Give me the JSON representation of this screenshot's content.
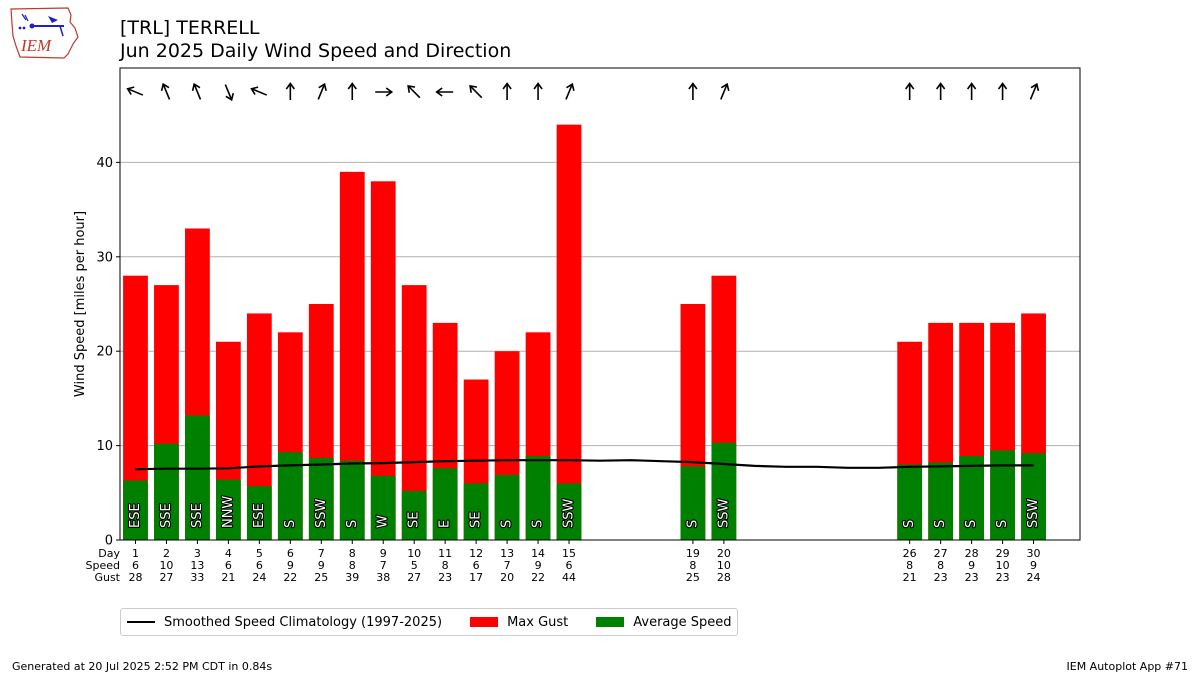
{
  "header": {
    "station": "[TRL] TERRELL",
    "subtitle": "Jun 2025 Daily Wind Speed and Direction",
    "logo_text": "IEM"
  },
  "row_labels": {
    "day": "Day",
    "speed": "Speed",
    "gust": "Gust"
  },
  "legend": {
    "climo": "Smoothed Speed Climatology (1997-2025)",
    "gust": "Max Gust",
    "avg": "Average Speed"
  },
  "footer": {
    "generated": "Generated at 20 Jul 2025 2:52 PM CDT in 0.84s",
    "app": "IEM Autoplot App #71"
  },
  "colors": {
    "gust": "#ff0000",
    "avg": "#008000",
    "climo": "#000000",
    "grid": "#b0b0b0"
  },
  "chart_data": {
    "type": "bar",
    "ylabel": "Wind Speed [miles per hour]",
    "ylim": [
      0,
      50
    ],
    "yticks": [
      0,
      10,
      20,
      30,
      40
    ],
    "xlim": [
      0.5,
      31.5
    ],
    "grid": "y",
    "legend_position": "below",
    "days": [
      {
        "day": 1,
        "avg": 6.3,
        "gust": 28,
        "speed_label": "6",
        "dir": "ESE",
        "dir_deg": 112.5
      },
      {
        "day": 2,
        "avg": 10.2,
        "gust": 27,
        "speed_label": "10",
        "dir": "SSE",
        "dir_deg": 157.5
      },
      {
        "day": 3,
        "avg": 13.2,
        "gust": 33,
        "speed_label": "13",
        "dir": "SSE",
        "dir_deg": 157.5
      },
      {
        "day": 4,
        "avg": 6.4,
        "gust": 21,
        "speed_label": "6",
        "dir": "NNW",
        "dir_deg": 337.5
      },
      {
        "day": 5,
        "avg": 5.7,
        "gust": 24,
        "speed_label": "6",
        "dir": "ESE",
        "dir_deg": 112.5
      },
      {
        "day": 6,
        "avg": 9.3,
        "gust": 22,
        "speed_label": "9",
        "dir": "S",
        "dir_deg": 180
      },
      {
        "day": 7,
        "avg": 8.7,
        "gust": 25,
        "speed_label": "9",
        "dir": "SSW",
        "dir_deg": 202.5
      },
      {
        "day": 8,
        "avg": 8.4,
        "gust": 39,
        "speed_label": "8",
        "dir": "S",
        "dir_deg": 180
      },
      {
        "day": 9,
        "avg": 6.8,
        "gust": 38,
        "speed_label": "7",
        "dir": "W",
        "dir_deg": 270
      },
      {
        "day": 10,
        "avg": 5.2,
        "gust": 27,
        "speed_label": "5",
        "dir": "SE",
        "dir_deg": 135
      },
      {
        "day": 11,
        "avg": 7.6,
        "gust": 23,
        "speed_label": "8",
        "dir": "E",
        "dir_deg": 90
      },
      {
        "day": 12,
        "avg": 6.0,
        "gust": 17,
        "speed_label": "6",
        "dir": "SE",
        "dir_deg": 135
      },
      {
        "day": 13,
        "avg": 6.9,
        "gust": 20,
        "speed_label": "7",
        "dir": "S",
        "dir_deg": 180
      },
      {
        "day": 14,
        "avg": 8.9,
        "gust": 22,
        "speed_label": "9",
        "dir": "S",
        "dir_deg": 180
      },
      {
        "day": 15,
        "avg": 6.0,
        "gust": 44,
        "speed_label": "6",
        "dir": "SSW",
        "dir_deg": 202.5
      },
      {
        "day": 19,
        "avg": 7.8,
        "gust": 25,
        "speed_label": "8",
        "dir": "S",
        "dir_deg": 180
      },
      {
        "day": 20,
        "avg": 10.3,
        "gust": 28,
        "speed_label": "10",
        "dir": "SSW",
        "dir_deg": 202.5
      },
      {
        "day": 26,
        "avg": 8.0,
        "gust": 21,
        "speed_label": "8",
        "dir": "S",
        "dir_deg": 180
      },
      {
        "day": 27,
        "avg": 8.2,
        "gust": 23,
        "speed_label": "8",
        "dir": "S",
        "dir_deg": 180
      },
      {
        "day": 28,
        "avg": 8.9,
        "gust": 23,
        "speed_label": "9",
        "dir": "S",
        "dir_deg": 180
      },
      {
        "day": 29,
        "avg": 9.5,
        "gust": 23,
        "speed_label": "10",
        "dir": "S",
        "dir_deg": 180
      },
      {
        "day": 30,
        "avg": 9.2,
        "gust": 24,
        "speed_label": "9",
        "dir": "SSW",
        "dir_deg": 202.5
      }
    ],
    "climatology": {
      "x": [
        1,
        2,
        3,
        4,
        5,
        6,
        7,
        8,
        9,
        10,
        11,
        12,
        13,
        14,
        15,
        16,
        17,
        18,
        19,
        20,
        21,
        22,
        23,
        24,
        25,
        26,
        27,
        28,
        29,
        30
      ],
      "y": [
        7.5,
        7.55,
        7.55,
        7.6,
        7.8,
        7.9,
        8.0,
        8.1,
        8.15,
        8.25,
        8.35,
        8.4,
        8.45,
        8.45,
        8.45,
        8.4,
        8.45,
        8.35,
        8.25,
        8.05,
        7.85,
        7.75,
        7.75,
        7.65,
        7.65,
        7.75,
        7.8,
        7.85,
        7.9,
        7.9
      ]
    }
  }
}
